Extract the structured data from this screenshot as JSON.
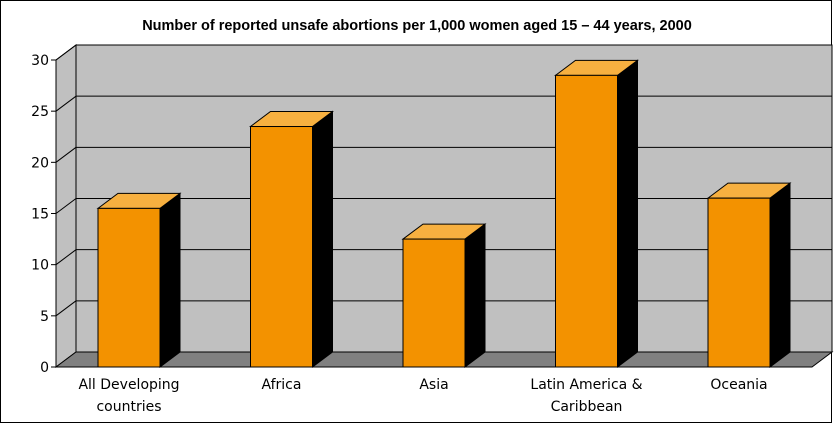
{
  "chart_data": {
    "type": "bar",
    "title": "Number of reported unsafe abortions per 1,000 women aged 15 – 44 years, 2000",
    "categories": [
      "All Developing countries",
      "Africa",
      "Asia",
      "Latin America & Caribbean",
      "Oceania"
    ],
    "category_lines": [
      [
        "All Developing",
        "countries"
      ],
      [
        "Africa"
      ],
      [
        "Asia"
      ],
      [
        "Latin America &",
        "Caribbean"
      ],
      [
        "Oceania"
      ]
    ],
    "values": [
      15.5,
      23.5,
      12.5,
      28.5,
      16.5
    ],
    "xlabel": "",
    "ylabel": "",
    "ylim": [
      0,
      30
    ],
    "yticks": [
      0,
      5,
      10,
      15,
      20,
      25,
      30
    ],
    "grid": true,
    "style": "3d-column",
    "colors": {
      "bar_front": "#f39200",
      "bar_top": "#f7b040",
      "bar_side": "#000000",
      "wall": "#c0c0c0",
      "floor": "#808080"
    }
  }
}
